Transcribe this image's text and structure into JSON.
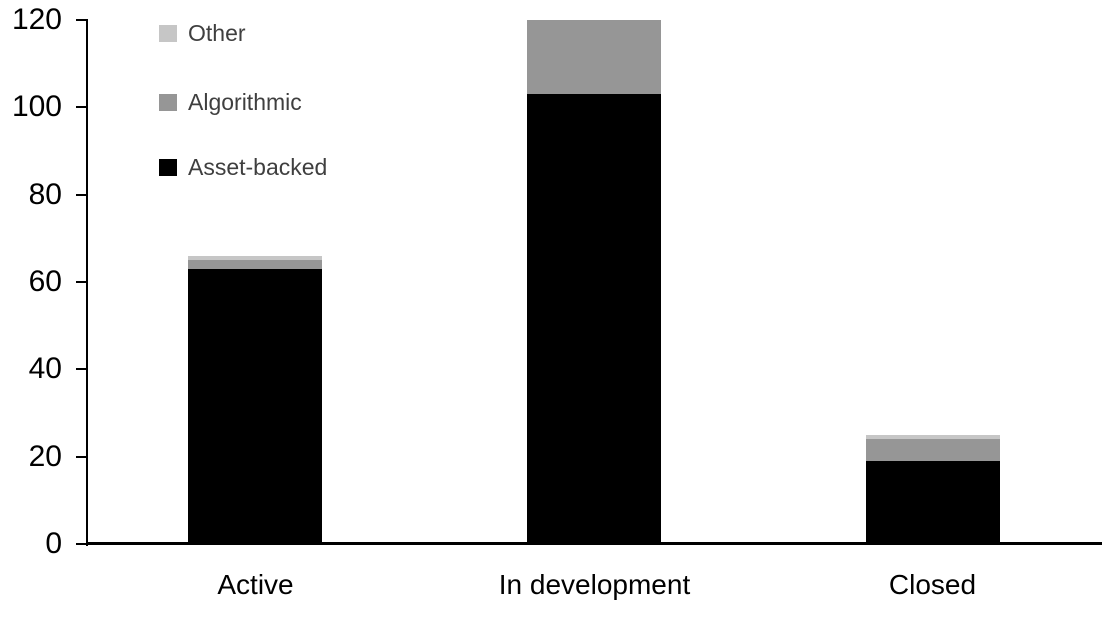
{
  "chart_data": {
    "type": "bar",
    "stacked": true,
    "title": "",
    "xlabel": "",
    "ylabel": "",
    "categories": [
      "Active",
      "In development",
      "Closed"
    ],
    "series": [
      {
        "name": "Asset-backed",
        "color": "#000000",
        "values": [
          63,
          103,
          19
        ]
      },
      {
        "name": "Algorithmic",
        "color": "#969696",
        "values": [
          2,
          17,
          5
        ]
      },
      {
        "name": "Other",
        "color": "#c6c6c6",
        "values": [
          1,
          0,
          1
        ]
      }
    ],
    "totals": [
      66,
      120,
      25
    ],
    "legend": [
      {
        "label": "Other",
        "color": "#c6c6c6"
      },
      {
        "label": "Algorithmic",
        "color": "#969696"
      },
      {
        "label": "Asset-backed",
        "color": "#000000"
      }
    ],
    "legend_position": "top-left",
    "y_axis": {
      "min": 0,
      "max": 120,
      "tick_interval": 20,
      "tick_labels": [
        "0",
        "20",
        "40",
        "60",
        "80",
        "100",
        "120"
      ]
    },
    "grid": false,
    "colors": {
      "axis": "#000000",
      "tick_text": "#000000",
      "legend_text": "#3f3f3f",
      "background": "#ffffff"
    }
  }
}
